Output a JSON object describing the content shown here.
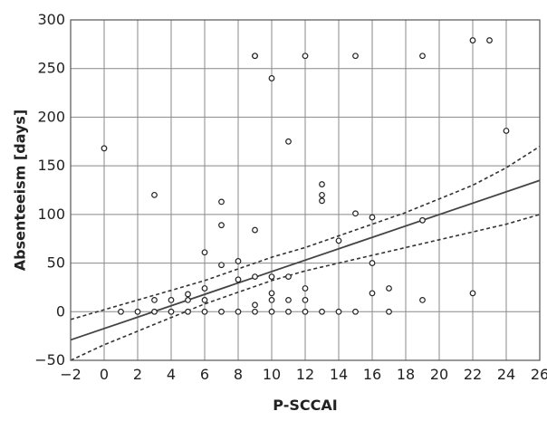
{
  "chart_data": {
    "type": "scatter",
    "title": "",
    "xlabel": "P-SCCAI",
    "ylabel": "Absenteeism [days]",
    "xlim": [
      -2,
      26
    ],
    "ylim": [
      -50,
      300
    ],
    "xticks": [
      -2,
      0,
      2,
      4,
      6,
      8,
      10,
      12,
      14,
      16,
      18,
      20,
      22,
      24,
      26
    ],
    "yticks": [
      -50,
      0,
      50,
      100,
      150,
      200,
      250,
      300
    ],
    "xtick_labels": [
      "−2",
      "0",
      "2",
      "4",
      "6",
      "8",
      "10",
      "12",
      "14",
      "16",
      "18",
      "20",
      "22",
      "24",
      "26"
    ],
    "ytick_labels": [
      "−50",
      "0",
      "50",
      "100",
      "150",
      "200",
      "250",
      "300"
    ],
    "grid": true,
    "points": [
      [
        0,
        168
      ],
      [
        1,
        0
      ],
      [
        2,
        0
      ],
      [
        3,
        0
      ],
      [
        3,
        12
      ],
      [
        3,
        120
      ],
      [
        4,
        0
      ],
      [
        4,
        12
      ],
      [
        5,
        0
      ],
      [
        5,
        12
      ],
      [
        5,
        18
      ],
      [
        6,
        0
      ],
      [
        6,
        12
      ],
      [
        6,
        24
      ],
      [
        6,
        61
      ],
      [
        7,
        0
      ],
      [
        7,
        48
      ],
      [
        7,
        89
      ],
      [
        7,
        113
      ],
      [
        8,
        0
      ],
      [
        8,
        33
      ],
      [
        8,
        52
      ],
      [
        9,
        0
      ],
      [
        9,
        7
      ],
      [
        9,
        36
      ],
      [
        9,
        84
      ],
      [
        9,
        263
      ],
      [
        9,
        263
      ],
      [
        10,
        0
      ],
      [
        10,
        12
      ],
      [
        10,
        19
      ],
      [
        10,
        36
      ],
      [
        10,
        240
      ],
      [
        11,
        0
      ],
      [
        11,
        12
      ],
      [
        11,
        36
      ],
      [
        11,
        175
      ],
      [
        12,
        0
      ],
      [
        12,
        12
      ],
      [
        12,
        24
      ],
      [
        12,
        263
      ],
      [
        13,
        0
      ],
      [
        13,
        114
      ],
      [
        13,
        120
      ],
      [
        13,
        131
      ],
      [
        14,
        0
      ],
      [
        14,
        73
      ],
      [
        15,
        0
      ],
      [
        15,
        101
      ],
      [
        15,
        263
      ],
      [
        16,
        19
      ],
      [
        16,
        50
      ],
      [
        16,
        97
      ],
      [
        17,
        0
      ],
      [
        17,
        24
      ],
      [
        19,
        12
      ],
      [
        19,
        94
      ],
      [
        19,
        263
      ],
      [
        22,
        19
      ],
      [
        22,
        279
      ],
      [
        23,
        279
      ],
      [
        24,
        186
      ]
    ],
    "fit_line": {
      "x": [
        -2,
        26
      ],
      "y": [
        -29,
        135
      ]
    },
    "ci_upper": {
      "x": [
        -2,
        0,
        2,
        4,
        6,
        8,
        10,
        12,
        14,
        16,
        18,
        20,
        22,
        24,
        26
      ],
      "y": [
        -8,
        2,
        12,
        22,
        32,
        44,
        56,
        66,
        78,
        90,
        102,
        116,
        130,
        148,
        170
      ]
    },
    "ci_lower": {
      "x": [
        -2,
        0,
        2,
        4,
        6,
        8,
        10,
        12,
        14,
        16,
        18,
        20,
        22,
        24,
        26
      ],
      "y": [
        -50,
        -34,
        -20,
        -6,
        8,
        20,
        32,
        42,
        50,
        58,
        66,
        74,
        82,
        90,
        100
      ]
    },
    "colors": {
      "points": "#222222",
      "fit_line": "#444444",
      "ci": "#333333",
      "grid": "#888888"
    }
  }
}
